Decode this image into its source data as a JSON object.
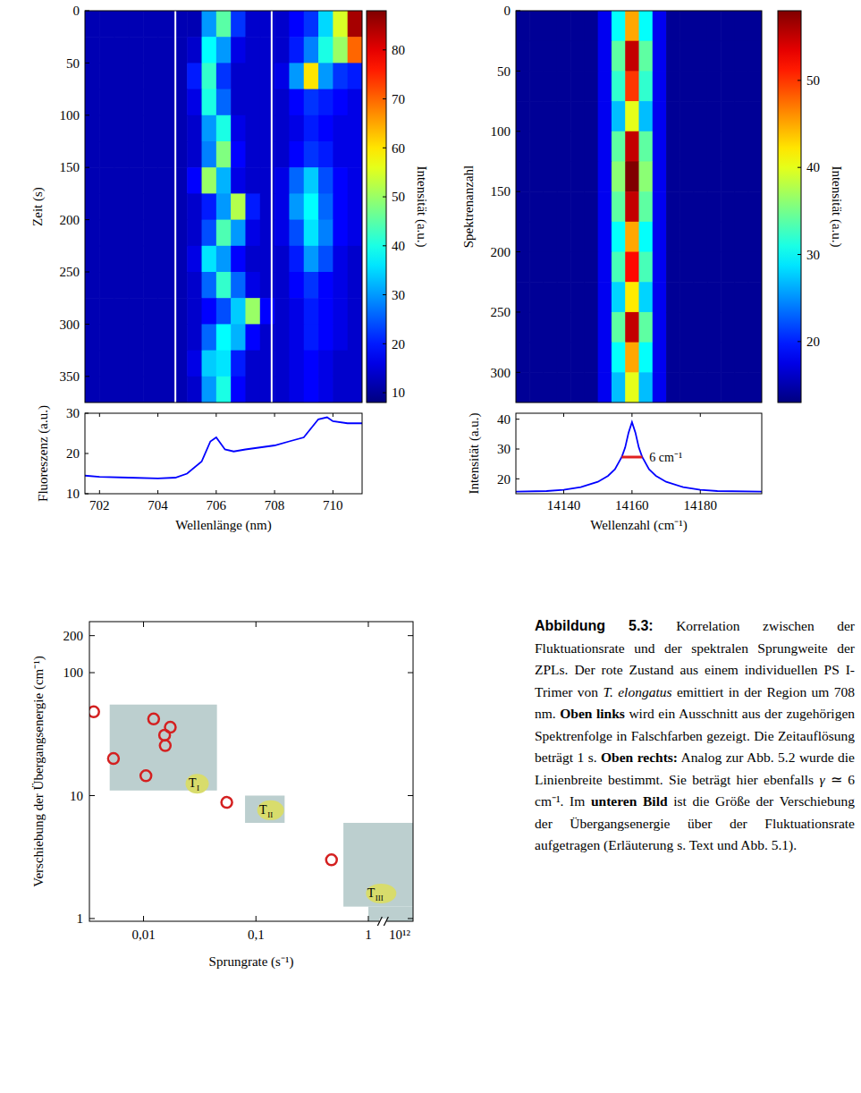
{
  "chart_data": [
    {
      "type": "heatmap",
      "ylabel": "Zeit (s)",
      "xlim": [
        701.5,
        711
      ],
      "ylim": [
        0,
        375
      ],
      "yticks": [
        0,
        50,
        100,
        150,
        200,
        250,
        300,
        350
      ],
      "tick_labels": "y",
      "separators": [
        704.6,
        707.9
      ],
      "colorbar": {
        "label": "Intensität (a.u.)",
        "range": [
          8,
          88
        ],
        "ticks": [
          10,
          20,
          30,
          40,
          50,
          60,
          70,
          80
        ]
      },
      "cells": [
        [
          12,
          12,
          12,
          12,
          12,
          12,
          12,
          12,
          30,
          45,
          22,
          14,
          14,
          14,
          18,
          22,
          35,
          55,
          85
        ],
        [
          12,
          12,
          12,
          12,
          12,
          12,
          12,
          14,
          38,
          30,
          16,
          14,
          14,
          14,
          20,
          28,
          40,
          50,
          70
        ],
        [
          12,
          12,
          12,
          12,
          12,
          12,
          12,
          20,
          42,
          22,
          14,
          14,
          14,
          16,
          30,
          60,
          30,
          22,
          20
        ],
        [
          12,
          12,
          12,
          12,
          12,
          12,
          12,
          16,
          40,
          26,
          14,
          14,
          14,
          14,
          18,
          22,
          20,
          18,
          16
        ],
        [
          12,
          12,
          12,
          12,
          12,
          12,
          12,
          14,
          30,
          40,
          16,
          14,
          14,
          14,
          16,
          20,
          18,
          16,
          16
        ],
        [
          12,
          12,
          12,
          12,
          12,
          12,
          12,
          14,
          28,
          48,
          18,
          14,
          14,
          14,
          18,
          22,
          20,
          16,
          16
        ],
        [
          12,
          12,
          12,
          12,
          12,
          12,
          12,
          18,
          50,
          32,
          16,
          14,
          14,
          16,
          26,
          34,
          24,
          18,
          16
        ],
        [
          12,
          12,
          12,
          12,
          12,
          12,
          12,
          14,
          20,
          30,
          52,
          20,
          14,
          16,
          30,
          38,
          26,
          18,
          16
        ],
        [
          12,
          12,
          12,
          12,
          12,
          12,
          12,
          14,
          24,
          44,
          30,
          16,
          14,
          16,
          24,
          36,
          28,
          18,
          16
        ],
        [
          12,
          12,
          12,
          12,
          12,
          12,
          12,
          16,
          36,
          30,
          18,
          14,
          14,
          14,
          20,
          30,
          24,
          16,
          14
        ],
        [
          12,
          12,
          12,
          12,
          12,
          12,
          12,
          14,
          26,
          42,
          26,
          16,
          14,
          14,
          18,
          22,
          18,
          16,
          14
        ],
        [
          12,
          12,
          12,
          12,
          12,
          12,
          12,
          14,
          18,
          24,
          34,
          50,
          18,
          14,
          16,
          20,
          18,
          16,
          14
        ],
        [
          12,
          12,
          12,
          12,
          12,
          12,
          12,
          14,
          26,
          38,
          32,
          18,
          14,
          14,
          16,
          20,
          18,
          16,
          14
        ],
        [
          12,
          12,
          12,
          12,
          12,
          12,
          12,
          16,
          34,
          36,
          20,
          14,
          14,
          14,
          16,
          18,
          16,
          14,
          14
        ],
        [
          12,
          12,
          12,
          12,
          12,
          12,
          12,
          14,
          30,
          40,
          18,
          14,
          14,
          14,
          16,
          18,
          16,
          14,
          14
        ]
      ]
    },
    {
      "type": "line",
      "xlabel": "Wellenlänge (nm)",
      "ylabel": "Fluoreszenz (a.u.)",
      "color": "#0000ff",
      "xlim": [
        701.5,
        711
      ],
      "ylim": [
        10,
        30
      ],
      "xticks": [
        702,
        704,
        706,
        708,
        710
      ],
      "yticks": [
        10,
        20,
        30
      ],
      "x": [
        701.5,
        702,
        703,
        704,
        704.6,
        705,
        705.5,
        705.8,
        706,
        706.3,
        706.6,
        707,
        707.5,
        708,
        708.5,
        709,
        709.5,
        709.8,
        710,
        710.5,
        711
      ],
      "values": [
        14.5,
        14.2,
        14,
        13.8,
        14,
        15,
        18,
        23,
        24,
        21,
        20.5,
        21,
        21.5,
        22,
        23,
        24,
        28.5,
        29,
        28,
        27.5,
        27.5
      ]
    },
    {
      "type": "heatmap",
      "ylabel": "Spektrenanzahl",
      "xlim": [
        14126,
        14198
      ],
      "ylim": [
        0,
        325
      ],
      "yticks": [
        0,
        50,
        100,
        150,
        200,
        250,
        300
      ],
      "tick_labels": "y",
      "colorbar": {
        "label": "Intensität (a.u.)",
        "range": [
          13,
          58
        ],
        "ticks": [
          20,
          30,
          40,
          50
        ]
      },
      "cells": [
        [
          14,
          14,
          14,
          14,
          14,
          14,
          18,
          30,
          45,
          30,
          18,
          14,
          14,
          14,
          14,
          14,
          14,
          14
        ],
        [
          14,
          14,
          14,
          14,
          14,
          14,
          18,
          34,
          55,
          34,
          18,
          14,
          14,
          14,
          14,
          14,
          14,
          14
        ],
        [
          14,
          14,
          14,
          14,
          14,
          14,
          18,
          32,
          50,
          32,
          18,
          14,
          14,
          14,
          14,
          14,
          14,
          14
        ],
        [
          14,
          14,
          14,
          14,
          14,
          14,
          18,
          27,
          40,
          27,
          18,
          14,
          14,
          14,
          14,
          14,
          14,
          14
        ],
        [
          14,
          14,
          14,
          14,
          14,
          14,
          18,
          34,
          55,
          34,
          18,
          14,
          14,
          14,
          14,
          14,
          14,
          14
        ],
        [
          14,
          14,
          14,
          14,
          14,
          14,
          18,
          36,
          58,
          36,
          18,
          14,
          14,
          14,
          14,
          14,
          14,
          14
        ],
        [
          14,
          14,
          14,
          14,
          14,
          14,
          18,
          34,
          55,
          34,
          18,
          14,
          14,
          14,
          14,
          14,
          14,
          14
        ],
        [
          14,
          14,
          14,
          14,
          14,
          14,
          18,
          30,
          45,
          30,
          18,
          14,
          14,
          14,
          14,
          14,
          14,
          14
        ],
        [
          14,
          14,
          14,
          14,
          14,
          14,
          18,
          33,
          52,
          33,
          18,
          14,
          14,
          14,
          14,
          14,
          14,
          14
        ],
        [
          14,
          14,
          14,
          14,
          14,
          14,
          18,
          28,
          42,
          28,
          18,
          14,
          14,
          14,
          14,
          14,
          14,
          14
        ],
        [
          14,
          14,
          14,
          14,
          14,
          14,
          18,
          34,
          55,
          34,
          18,
          14,
          14,
          14,
          14,
          14,
          14,
          14
        ],
        [
          14,
          14,
          14,
          14,
          14,
          14,
          18,
          30,
          45,
          30,
          18,
          14,
          14,
          14,
          14,
          14,
          14,
          14
        ],
        [
          14,
          14,
          14,
          14,
          14,
          14,
          18,
          27,
          40,
          27,
          18,
          14,
          14,
          14,
          14,
          14,
          14,
          14
        ]
      ]
    },
    {
      "type": "line",
      "xlabel": "Wellenzahl (cm⁻¹)",
      "ylabel": "Intensität (a.u.)",
      "color": "#0000ff",
      "xlim": [
        14126,
        14198
      ],
      "ylim": [
        15,
        42
      ],
      "xticks": [
        14140,
        14160,
        14180
      ],
      "yticks": [
        20,
        30,
        40
      ],
      "x": [
        14126,
        14135,
        14140,
        14145,
        14150,
        14153,
        14155,
        14157,
        14158,
        14159,
        14160,
        14161,
        14162,
        14163,
        14165,
        14167,
        14170,
        14175,
        14180,
        14185,
        14198
      ],
      "values": [
        15.7,
        15.9,
        16.3,
        17.2,
        19,
        21,
        23.2,
        27.3,
        30.5,
        35.5,
        39,
        35.5,
        30.5,
        27.3,
        23.2,
        21,
        19,
        17.2,
        16.3,
        15.9,
        15.7
      ],
      "fwhm": {
        "x1": 14157,
        "x2": 14163,
        "y": 27.3,
        "label": "6 cm⁻¹",
        "color": "#e02020"
      }
    },
    {
      "type": "scatter",
      "xlabel": "Sprungrate (s⁻¹)",
      "ylabel": "Verschiebung der Übergangsenergie (cm⁻¹)",
      "log": true,
      "color": "#d42020",
      "marker": "ring",
      "xlim": [
        0.0033,
        2.5
      ],
      "ylim": [
        0.95,
        260
      ],
      "xticks": [
        {
          "value": 0.01,
          "label": "0,01"
        },
        {
          "value": 0.1,
          "label": "0,1"
        },
        1
      ],
      "yticks": [
        1,
        10,
        100,
        200
      ],
      "x_break": {
        "at": 1.35,
        "label": "10¹²",
        "label_at": 1.9
      },
      "x": [
        0.0036,
        0.0054,
        0.0105,
        0.0123,
        0.0154,
        0.0156,
        0.0173,
        0.055,
        0.47
      ],
      "values": [
        48,
        20,
        14.5,
        42,
        31,
        25.5,
        36,
        8.8,
        3
      ],
      "regions": [
        {
          "label": {
            "text": "T",
            "sub": "I"
          },
          "label_at": [
            0.03,
            12.5
          ],
          "color": "#bccfcf",
          "rects": [
            [
              0.005,
              0.045,
              11,
              55
            ]
          ]
        },
        {
          "label": {
            "text": "T",
            "sub": "II"
          },
          "label_at": [
            0.135,
            7.6
          ],
          "color": "#bccfcf",
          "rects": [
            [
              0.08,
              0.18,
              6,
              10
            ]
          ]
        },
        {
          "label": {
            "text": "T",
            "sub": "III"
          },
          "label_at": [
            1.3,
            1.6
          ],
          "color": "#bccfcf",
          "rects": [
            [
              0.6,
              2.5,
              1.25,
              6
            ],
            [
              1.0,
              2.5,
              0.95,
              1.25
            ]
          ]
        }
      ]
    }
  ],
  "caption": {
    "runs": [
      {
        "text": "Abbildung 5.3:",
        "style": "heading"
      },
      {
        "text": " Korrelation zwischen der Fluktuationsrate und der spektralen Sprungweite der ZPLs. Der rote Zustand aus einem individuellen PS I-Trimer von ",
        "style": "normal"
      },
      {
        "text": "T. elongatus",
        "style": "italic"
      },
      {
        "text": " emittiert in der Region um 708 nm. ",
        "style": "normal"
      },
      {
        "text": "Oben links",
        "style": "bold"
      },
      {
        "text": " wird ein Ausschnitt aus der zugehörigen Spektrenfolge in Falschfarben gezeigt. Die Zeitauflösung beträgt 1 s. ",
        "style": "normal"
      },
      {
        "text": "Oben rechts:",
        "style": "bold"
      },
      {
        "text": " Analog zur Abb. 5.2 wurde die Linienbreite bestimmt. Sie beträgt hier ebenfalls ",
        "style": "normal"
      },
      {
        "text": "γ",
        "style": "italic"
      },
      {
        "text": " ≃ 6 cm⁻¹. Im ",
        "style": "normal"
      },
      {
        "text": "unteren Bild",
        "style": "bold"
      },
      {
        "text": " ist die Größe der Verschiebung der Übergangsenergie über der Fluktuationsrate aufgetragen (Erläuterung s. Text und Abb. 5.1).",
        "style": "normal"
      }
    ]
  }
}
